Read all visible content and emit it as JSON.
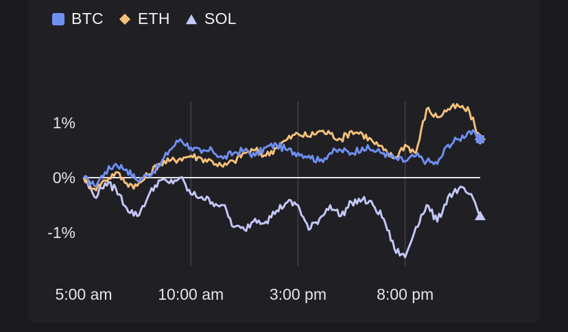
{
  "chart_data": {
    "type": "line",
    "title": "",
    "xlabel": "",
    "ylabel": "",
    "x_ticks": [
      "5:00 am",
      "10:00 am",
      "3:00 pm",
      "8:00 pm"
    ],
    "y_ticks": [
      "1%",
      "0%",
      "-1%"
    ],
    "ylim": [
      -1.6,
      1.4
    ],
    "x_range_hours": [
      5.0,
      23.5
    ],
    "series": [
      {
        "name": "BTC",
        "color": "#6f8ff0",
        "marker": "square",
        "x": [
          5.0,
          5.5,
          6.0,
          6.5,
          7.0,
          7.5,
          8.0,
          8.5,
          9.0,
          9.5,
          10.0,
          10.5,
          11.0,
          11.5,
          12.0,
          12.5,
          13.0,
          13.5,
          14.0,
          14.5,
          15.0,
          15.5,
          16.0,
          16.5,
          17.0,
          17.5,
          18.0,
          18.5,
          19.0,
          19.5,
          20.0,
          20.5,
          21.0,
          21.5,
          22.0,
          22.5,
          23.0,
          23.5
        ],
        "y": [
          0.0,
          -0.15,
          0.1,
          0.25,
          0.15,
          -0.05,
          0.05,
          0.2,
          0.5,
          0.7,
          0.55,
          0.45,
          0.5,
          0.35,
          0.45,
          0.5,
          0.4,
          0.55,
          0.6,
          0.5,
          0.45,
          0.4,
          0.3,
          0.45,
          0.5,
          0.45,
          0.55,
          0.5,
          0.45,
          0.35,
          0.3,
          0.4,
          0.3,
          0.25,
          0.6,
          0.7,
          0.85,
          0.7
        ]
      },
      {
        "name": "ETH",
        "color": "#f5c07a",
        "marker": "diamond",
        "x": [
          5.0,
          5.5,
          6.0,
          6.5,
          7.0,
          7.5,
          8.0,
          8.5,
          9.0,
          9.5,
          10.0,
          10.5,
          11.0,
          11.5,
          12.0,
          12.5,
          13.0,
          13.5,
          14.0,
          14.5,
          15.0,
          15.5,
          16.0,
          16.5,
          17.0,
          17.5,
          18.0,
          18.5,
          19.0,
          19.5,
          20.0,
          20.5,
          21.0,
          21.5,
          22.0,
          22.5,
          23.0,
          23.5
        ],
        "y": [
          0.0,
          -0.2,
          -0.05,
          0.1,
          -0.1,
          -0.15,
          0.05,
          0.25,
          0.3,
          0.35,
          0.4,
          0.35,
          0.3,
          0.2,
          0.3,
          0.45,
          0.5,
          0.4,
          0.55,
          0.7,
          0.8,
          0.75,
          0.85,
          0.8,
          0.7,
          0.85,
          0.8,
          0.65,
          0.5,
          0.35,
          0.6,
          0.45,
          1.25,
          1.1,
          1.25,
          1.3,
          1.2,
          0.7
        ]
      },
      {
        "name": "SOL",
        "color": "#c3c8f7",
        "marker": "triangle",
        "x": [
          5.0,
          5.5,
          6.0,
          6.5,
          7.0,
          7.5,
          8.0,
          8.5,
          9.0,
          9.5,
          10.0,
          10.5,
          11.0,
          11.5,
          12.0,
          12.5,
          13.0,
          13.5,
          14.0,
          14.5,
          15.0,
          15.5,
          16.0,
          16.5,
          17.0,
          17.5,
          18.0,
          18.5,
          19.0,
          19.5,
          20.0,
          20.5,
          21.0,
          21.5,
          22.0,
          22.5,
          23.0,
          23.5
        ],
        "y": [
          0.0,
          -0.35,
          -0.1,
          -0.2,
          -0.55,
          -0.7,
          -0.35,
          -0.05,
          -0.1,
          0.0,
          -0.3,
          -0.35,
          -0.45,
          -0.5,
          -0.9,
          -0.95,
          -0.75,
          -0.8,
          -0.6,
          -0.45,
          -0.5,
          -0.95,
          -0.75,
          -0.5,
          -0.7,
          -0.45,
          -0.4,
          -0.5,
          -0.75,
          -1.3,
          -1.45,
          -0.9,
          -0.5,
          -0.8,
          -0.35,
          -0.2,
          -0.3,
          -0.7
        ]
      }
    ]
  }
}
